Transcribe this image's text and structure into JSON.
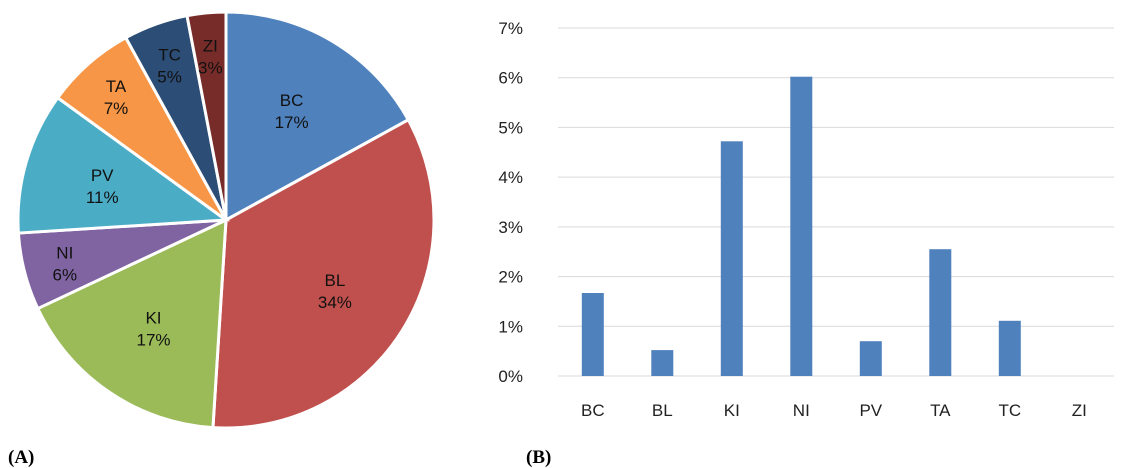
{
  "panels": {
    "a": "(A)",
    "b": "(B)"
  },
  "chart_data": [
    {
      "type": "pie",
      "start_angle": 0,
      "direction": "clockwise",
      "slices": [
        {
          "label": "BC",
          "pct": "17%",
          "value": 17,
          "color": "#4F81BD"
        },
        {
          "label": "BL",
          "pct": "34%",
          "value": 34,
          "color": "#C0504D"
        },
        {
          "label": "KI",
          "pct": "17%",
          "value": 17,
          "color": "#9BBB59"
        },
        {
          "label": "NI",
          "pct": "6%",
          "value": 6,
          "color": "#8064A2"
        },
        {
          "label": "PV",
          "pct": "11%",
          "value": 11,
          "color": "#4BACC6"
        },
        {
          "label": "TA",
          "pct": "7%",
          "value": 7,
          "color": "#F79646"
        },
        {
          "label": "TC",
          "pct": "5%",
          "value": 5,
          "color": "#2C4D75"
        },
        {
          "label": "ZI",
          "pct": "3%",
          "value": 3,
          "color": "#772C2A"
        }
      ]
    },
    {
      "type": "bar",
      "categories": [
        "BC",
        "BL",
        "KI",
        "NI",
        "PV",
        "TA",
        "TC",
        "ZI"
      ],
      "values": [
        1.67,
        0.52,
        4.72,
        6.02,
        0.7,
        2.55,
        1.11,
        0
      ],
      "ylim": [
        0,
        7
      ],
      "yticks": [
        "0%",
        "1%",
        "2%",
        "3%",
        "4%",
        "5%",
        "6%",
        "7%"
      ],
      "grid": true,
      "bar_color": "#4F81BD",
      "grid_color": "#D9D9D9"
    }
  ]
}
